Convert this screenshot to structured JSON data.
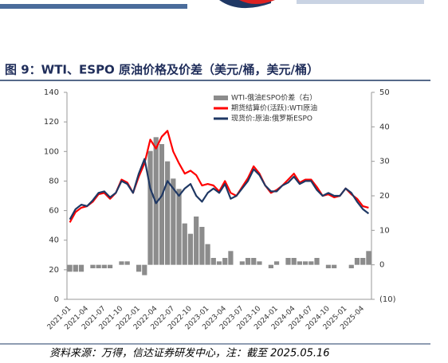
{
  "chart_data": {
    "type": "combo",
    "title": "图 9：WTI、ESPO 原油价格及价差（美元/桶，美元/桶）",
    "source": "资料来源：万得，信达证券研发中心，注：截至 2025.05.16",
    "categories": [
      "2021-01",
      null,
      null,
      "2021-04",
      null,
      null,
      "2021-07",
      null,
      null,
      "2021-10",
      null,
      null,
      "2022-01",
      null,
      null,
      "2022-04",
      null,
      null,
      "2022-07",
      null,
      null,
      "2022-10",
      null,
      null,
      "2023-01",
      null,
      null,
      "2023-04",
      null,
      null,
      "2023-07",
      null,
      null,
      "2023-10",
      null,
      null,
      "2024-01",
      null,
      null,
      "2024-04",
      null,
      null,
      "2024-07",
      null,
      null,
      "2024-10",
      null,
      null,
      "2025-01",
      null,
      null,
      "2025-04",
      null
    ],
    "series": [
      {
        "name": "WTI-俄油ESPO价差（右）",
        "type": "bar",
        "axis": "y2",
        "color": "#8c8c8c",
        "values": [
          -2,
          -2,
          -2,
          0,
          -1,
          -1,
          -1,
          -1,
          0,
          1,
          1,
          0,
          -2,
          -3,
          33,
          37,
          35,
          30,
          25,
          22,
          12,
          9,
          14,
          11,
          6,
          2,
          1,
          2,
          4,
          0,
          1,
          2,
          2,
          1,
          0,
          -1,
          1,
          0,
          2,
          2,
          1,
          1,
          1,
          2,
          0,
          -1,
          -1,
          0,
          0,
          -1,
          2,
          2,
          4
        ]
      },
      {
        "name": "期货结算价(活跃):WTI原油",
        "type": "line",
        "color": "#ff0000",
        "values": [
          52,
          59,
          62,
          63,
          66,
          71,
          72,
          68,
          72,
          81,
          79,
          72,
          83,
          92,
          108,
          102,
          110,
          114,
          100,
          92,
          85,
          87,
          84,
          77,
          78,
          77,
          73,
          80,
          72,
          70,
          76,
          82,
          90,
          85,
          77,
          72,
          74,
          77,
          81,
          85,
          79,
          81,
          81,
          76,
          70,
          71,
          69,
          70,
          75,
          71,
          68,
          63,
          62
        ]
      },
      {
        "name": "现货价:原油:俄罗斯ESPO",
        "type": "line",
        "color": "#1f3864",
        "values": [
          54,
          61,
          64,
          63,
          67,
          72,
          73,
          69,
          72,
          80,
          78,
          72,
          85,
          95,
          75,
          65,
          70,
          80,
          75,
          70,
          75,
          78,
          70,
          66,
          72,
          75,
          72,
          78,
          68,
          70,
          75,
          80,
          88,
          84,
          77,
          73,
          73,
          77,
          79,
          83,
          78,
          80,
          80,
          74,
          70,
          72,
          70,
          70,
          75,
          72,
          66,
          61,
          58
        ]
      }
    ],
    "ylim": [
      0,
      140
    ],
    "yticks": [
      0,
      20,
      40,
      60,
      80,
      100,
      120,
      140
    ],
    "y2lim": [
      -10,
      50
    ],
    "y2ticks": [
      {
        "value": -10,
        "label": "(10)"
      },
      0,
      10,
      20,
      30,
      40,
      50
    ]
  }
}
